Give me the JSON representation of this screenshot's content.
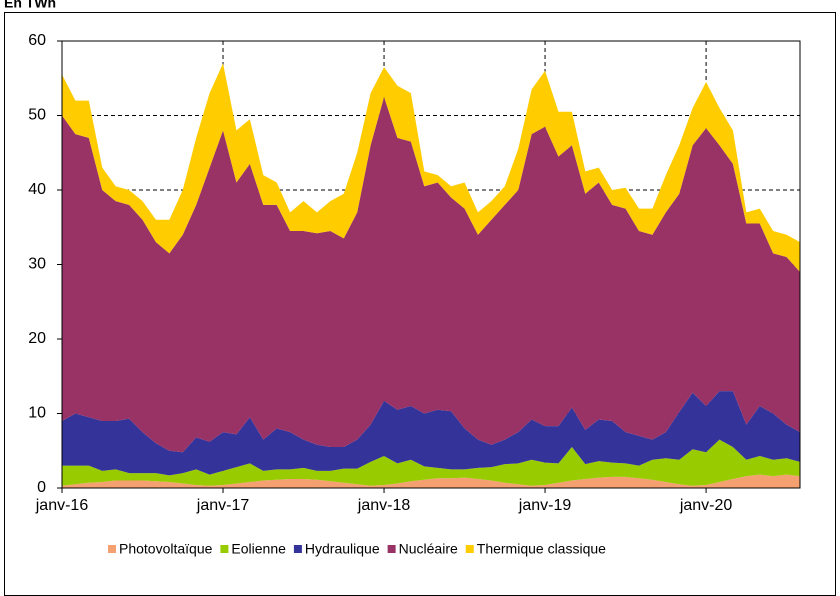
{
  "chart_data": {
    "type": "stacked-area",
    "title": "En TWh",
    "categories": [
      "janv-16",
      null,
      null,
      null,
      null,
      null,
      null,
      null,
      null,
      null,
      null,
      null,
      "janv-17",
      null,
      null,
      null,
      null,
      null,
      null,
      null,
      null,
      null,
      null,
      null,
      "janv-18",
      null,
      null,
      null,
      null,
      null,
      null,
      null,
      null,
      null,
      null,
      null,
      "janv-19",
      null,
      null,
      null,
      null,
      null,
      null,
      null,
      null,
      null,
      null,
      null,
      "janv-20",
      null,
      null,
      null,
      null,
      null,
      null,
      null
    ],
    "series": [
      {
        "name": "Photovoltaïque",
        "color": "#f4a070",
        "values": [
          0.3,
          0.5,
          0.7,
          0.8,
          1.0,
          1.0,
          1.0,
          0.9,
          0.8,
          0.6,
          0.4,
          0.3,
          0.4,
          0.6,
          0.8,
          1.0,
          1.1,
          1.2,
          1.2,
          1.1,
          0.9,
          0.7,
          0.5,
          0.3,
          0.4,
          0.6,
          0.9,
          1.1,
          1.3,
          1.3,
          1.4,
          1.2,
          1.0,
          0.7,
          0.5,
          0.3,
          0.4,
          0.7,
          1.0,
          1.2,
          1.4,
          1.5,
          1.5,
          1.3,
          1.1,
          0.8,
          0.5,
          0.3,
          0.4,
          0.8,
          1.2,
          1.6,
          1.8,
          1.6,
          1.8,
          1.6
        ]
      },
      {
        "name": "Eolienne",
        "color": "#99cc00",
        "values": [
          2.7,
          2.5,
          2.3,
          1.5,
          1.5,
          1.0,
          1.0,
          1.1,
          0.9,
          1.4,
          2.1,
          1.5,
          1.9,
          2.2,
          2.5,
          1.3,
          1.4,
          1.3,
          1.5,
          1.2,
          1.4,
          1.9,
          2.1,
          3.2,
          3.9,
          2.7,
          2.9,
          1.8,
          1.4,
          1.2,
          1.1,
          1.5,
          1.8,
          2.5,
          2.8,
          3.5,
          3.0,
          2.6,
          4.5,
          2.0,
          2.2,
          1.9,
          1.8,
          1.7,
          2.7,
          3.2,
          3.3,
          4.9,
          4.4,
          5.7,
          4.3,
          2.2,
          2.5,
          2.2,
          2.2,
          1.9
        ]
      },
      {
        "name": "Hydraulique",
        "color": "#333399",
        "values": [
          6.0,
          7.0,
          6.5,
          6.7,
          6.5,
          7.3,
          5.5,
          4.0,
          3.3,
          2.8,
          4.3,
          4.4,
          5.2,
          4.4,
          6.2,
          4.2,
          5.5,
          5.0,
          3.8,
          3.5,
          3.2,
          2.9,
          3.9,
          5.0,
          7.4,
          7.2,
          7.2,
          7.1,
          7.8,
          7.8,
          5.5,
          3.8,
          3.0,
          3.3,
          4.2,
          5.4,
          4.9,
          5.0,
          5.3,
          4.6,
          5.6,
          5.6,
          4.2,
          4.0,
          2.7,
          3.5,
          6.4,
          7.6,
          6.2,
          6.5,
          7.5,
          4.7,
          6.7,
          6.2,
          4.5,
          4.0
        ]
      },
      {
        "name": "Nucléaire",
        "color": "#993366",
        "values": [
          41.0,
          37.5,
          37.5,
          31.0,
          29.5,
          28.7,
          28.5,
          27.0,
          26.5,
          29.2,
          31.2,
          36.8,
          40.5,
          33.8,
          34.0,
          31.5,
          30.0,
          27.0,
          28.0,
          28.4,
          29.0,
          28.0,
          30.5,
          37.5,
          40.8,
          36.5,
          35.5,
          30.5,
          30.5,
          28.7,
          29.5,
          27.5,
          30.2,
          31.5,
          32.5,
          38.3,
          40.2,
          36.2,
          35.2,
          31.7,
          31.8,
          29.0,
          30.0,
          27.5,
          27.5,
          29.5,
          29.3,
          33.2,
          37.3,
          33.0,
          30.5,
          27.0,
          24.5,
          21.5,
          22.5,
          21.5
        ]
      },
      {
        "name": "Thermique classique",
        "color": "#ffcc00",
        "values": [
          5.5,
          4.5,
          5.0,
          3.0,
          2.0,
          2.0,
          2.5,
          3.0,
          4.5,
          6.0,
          9.0,
          10.0,
          9.0,
          7.0,
          6.0,
          4.0,
          3.0,
          2.5,
          4.0,
          2.8,
          4.0,
          6.0,
          8.0,
          7.0,
          4.0,
          7.0,
          6.5,
          2.0,
          1.0,
          1.5,
          3.5,
          3.0,
          2.5,
          2.5,
          5.5,
          6.0,
          7.5,
          6.0,
          4.5,
          3.0,
          2.0,
          2.0,
          2.8,
          3.0,
          3.5,
          5.0,
          6.5,
          5.0,
          6.2,
          5.0,
          4.5,
          1.5,
          2.0,
          3.0,
          3.0,
          4.0
        ]
      }
    ],
    "ylim": [
      0,
      60
    ],
    "yticks": [
      0,
      10,
      20,
      30,
      40,
      50,
      60
    ],
    "grid": true
  }
}
